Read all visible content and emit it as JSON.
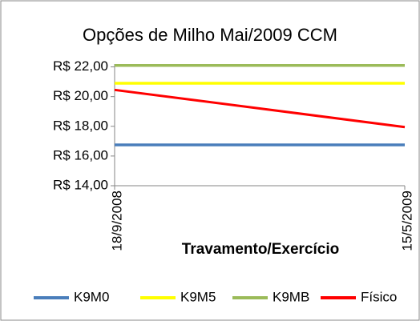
{
  "chart_data": {
    "type": "line",
    "title": "Opções de Milho Mai/2009 CCM",
    "x_label": "Travamento/Exercício",
    "categories": [
      "18/9/2008",
      "15/5/2009"
    ],
    "series": [
      {
        "name": "K9M0",
        "color": "#4a7ebb",
        "values": [
          16.75,
          16.75
        ]
      },
      {
        "name": "K9M5",
        "color": "#ffff00",
        "values": [
          20.9,
          20.9
        ]
      },
      {
        "name": "K9MB",
        "color": "#9bbb59",
        "values": [
          22.1,
          22.1
        ]
      },
      {
        "name": "Físico",
        "color": "#ff0000",
        "values": [
          20.45,
          17.95
        ]
      }
    ],
    "ylim": [
      14,
      23
    ],
    "yticks": [
      {
        "value": 14,
        "label": "R$ 14,00"
      },
      {
        "value": 16,
        "label": "R$ 16,00"
      },
      {
        "value": 18,
        "label": "R$ 18,00"
      },
      {
        "value": 20,
        "label": "R$ 20,00"
      },
      {
        "value": 22,
        "label": "R$ 22,00"
      }
    ],
    "legend": "bottom"
  }
}
